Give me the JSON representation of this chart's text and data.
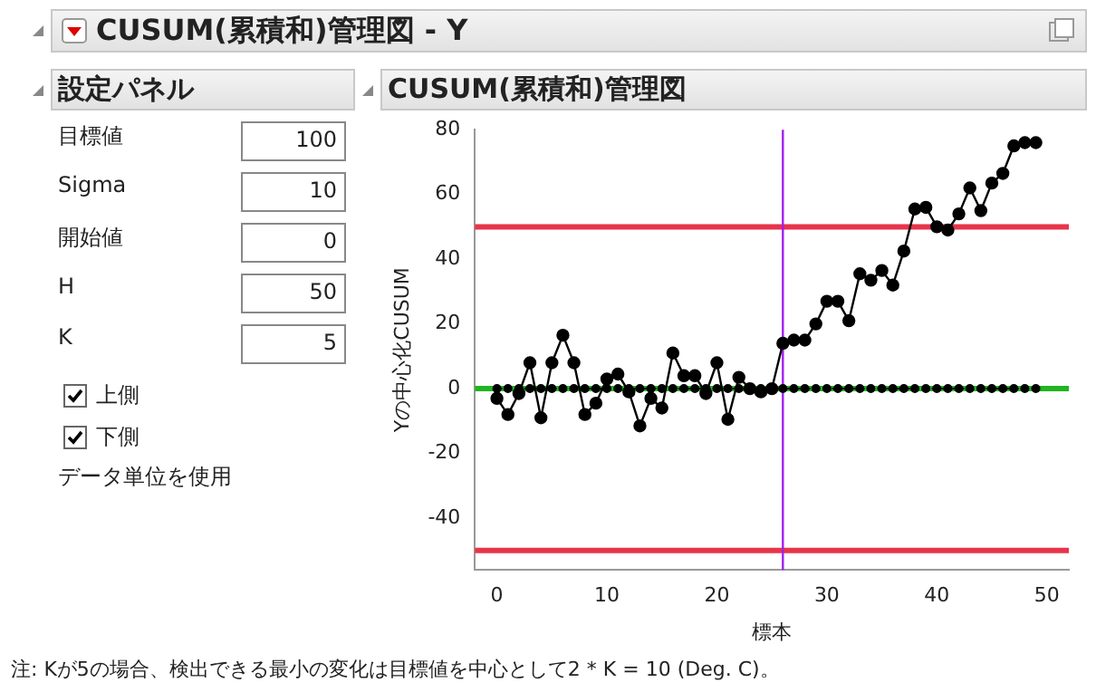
{
  "chart_data": [
    {
      "type": "other",
      "title": "CUSUM(累積和)管理図 - Y",
      "subtitle": "設定パネル",
      "annotations": [
        "目標値",
        "100",
        "Sigma",
        "10",
        "開始値",
        "0",
        "H",
        "50",
        "K",
        "5",
        "上側",
        "下側",
        "データ単位を使用"
      ]
    },
    {
      "type": "line",
      "title": "CUSUM(累積和)管理図",
      "xlabel": "標本",
      "ylabel": "Yの中心化CUSUM",
      "x": [
        0,
        1,
        2,
        3,
        4,
        5,
        6,
        7,
        8,
        9,
        10,
        11,
        12,
        13,
        14,
        15,
        16,
        17,
        18,
        19,
        20,
        21,
        22,
        23,
        24,
        25,
        26,
        27,
        28,
        29,
        30,
        31,
        32,
        33,
        34,
        35,
        36,
        37,
        38,
        39,
        40,
        41,
        42,
        43,
        44,
        45,
        46,
        47,
        48,
        49
      ],
      "series": [
        {
          "color": "#000000",
          "line_style": "solid",
          "values": [
            -3,
            -8,
            -1.5,
            8,
            -9,
            8,
            16.5,
            8,
            -8,
            -4.5,
            3,
            4.5,
            -1,
            -11.5,
            -3,
            -6,
            11,
            4,
            4,
            -1.5,
            8,
            -9.5,
            3.5,
            0,
            -1,
            0,
            14,
            15,
            15,
            20,
            27,
            27,
            21,
            35.5,
            33.5,
            36.5,
            32,
            42.5,
            55.5,
            56,
            50,
            49,
            54,
            62,
            55,
            63.5,
            66.5,
            75,
            76,
            76
          ]
        },
        {
          "color": "#000000",
          "line_style": "dashed",
          "values": [
            0,
            0,
            0,
            0,
            0,
            0,
            0,
            0,
            0,
            0,
            0,
            0,
            0,
            0,
            0,
            0,
            0,
            0,
            0,
            0,
            0,
            0,
            0,
            0,
            0,
            0,
            0,
            0,
            0,
            0,
            0,
            0,
            0,
            0,
            0,
            0,
            0,
            0,
            0,
            0,
            0,
            0,
            0,
            0,
            0,
            0,
            0,
            0,
            0,
            0
          ]
        }
      ],
      "marker": "circle",
      "xlim": [
        -2,
        52
      ],
      "ylim": [
        -56,
        80
      ],
      "xticks": [
        0,
        10,
        20,
        30,
        40,
        50
      ],
      "yticks": [
        -40,
        -20,
        0,
        20,
        40,
        60,
        80
      ],
      "ref_lines": [
        {
          "axis": "y",
          "value": 50,
          "color": "#e8344a"
        },
        {
          "axis": "y",
          "value": -50,
          "color": "#e8344a"
        },
        {
          "axis": "y",
          "value": 0,
          "color": "#22b422"
        },
        {
          "axis": "x",
          "value": 26,
          "color": "#a020f0"
        }
      ],
      "annotations": [
        "注: Kが5の場合、検出できる最小の変化は目標値を中心として2 * K = 10 (Deg. C)。"
      ]
    }
  ]
}
